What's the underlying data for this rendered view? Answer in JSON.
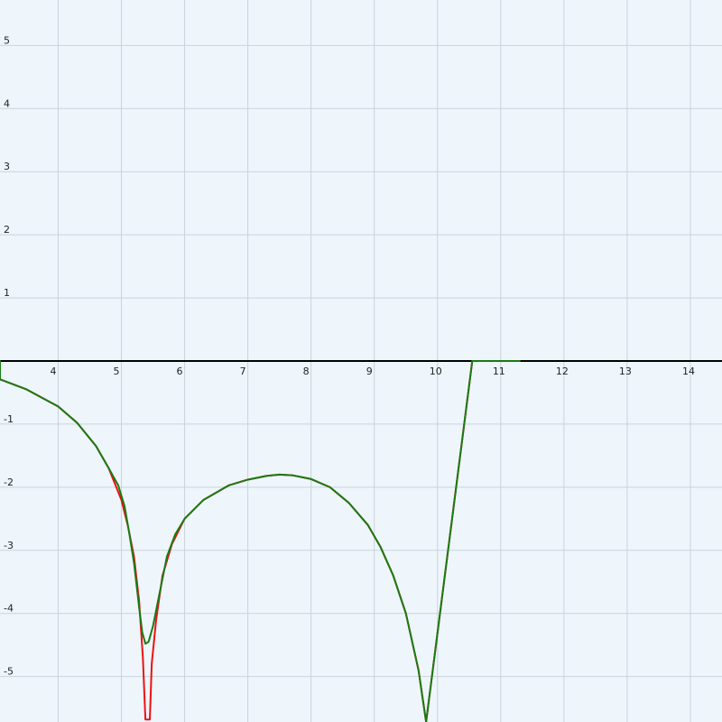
{
  "chart_data": {
    "type": "line",
    "title": "",
    "xlabel": "",
    "ylabel": "",
    "xlim": [
      3.08,
      14.5
    ],
    "ylim": [
      -5.72,
      5.72
    ],
    "grid": true,
    "legend": "none",
    "x_ticks": [
      4,
      5,
      6,
      7,
      8,
      9,
      10,
      11,
      12,
      13,
      14
    ],
    "x_tick_labels": [
      "4",
      "5",
      "6",
      "7",
      "8",
      "9",
      "10",
      "11",
      "12",
      "13",
      "14"
    ],
    "y_ticks": [
      5,
      4,
      3,
      2,
      1,
      -1,
      -2,
      -3,
      -4,
      -5
    ],
    "y_tick_labels": [
      "5",
      "4",
      "3",
      "2",
      "1",
      "-1",
      "-2",
      "-3",
      "-4",
      "-5"
    ],
    "colors": {
      "background": "#eef6fc",
      "grid": "#c9d3dc",
      "axis": "#000000",
      "series_red": "#ee1111",
      "series_green": "#1a7a12"
    },
    "series": [
      {
        "color": "#ee1111",
        "points": [
          [
            3.08,
            -0.29
          ],
          [
            3.5,
            -0.45
          ],
          [
            4.0,
            -0.72
          ],
          [
            4.3,
            -0.98
          ],
          [
            4.6,
            -1.35
          ],
          [
            4.8,
            -1.7
          ],
          [
            5.0,
            -2.2
          ],
          [
            5.1,
            -2.6
          ],
          [
            5.2,
            -3.1
          ],
          [
            5.28,
            -3.8
          ],
          [
            5.34,
            -4.7
          ],
          [
            5.38,
            -5.68
          ],
          [
            5.45,
            -5.68
          ],
          [
            5.48,
            -4.8
          ],
          [
            5.55,
            -4.1
          ],
          [
            5.65,
            -3.4
          ],
          [
            5.8,
            -2.9
          ],
          [
            6.0,
            -2.5
          ],
          [
            6.3,
            -2.2
          ],
          [
            6.7,
            -1.97
          ],
          [
            7.0,
            -1.88
          ],
          [
            7.3,
            -1.82
          ],
          [
            7.5,
            -1.8
          ],
          [
            7.7,
            -1.81
          ],
          [
            8.0,
            -1.87
          ],
          [
            8.3,
            -2.0
          ],
          [
            8.6,
            -2.25
          ],
          [
            8.9,
            -2.6
          ],
          [
            9.1,
            -2.95
          ],
          [
            9.3,
            -3.4
          ],
          [
            9.5,
            -4.0
          ],
          [
            9.7,
            -4.9
          ],
          [
            9.82,
            -5.72
          ],
          [
            10.55,
            0.0
          ],
          [
            11.3,
            0.0
          ]
        ]
      },
      {
        "color": "#1a7a12",
        "points": [
          [
            3.08,
            0.0
          ],
          [
            3.08,
            -0.29
          ],
          [
            3.5,
            -0.45
          ],
          [
            4.0,
            -0.72
          ],
          [
            4.3,
            -0.98
          ],
          [
            4.6,
            -1.35
          ],
          [
            4.8,
            -1.7
          ],
          [
            4.95,
            -1.97
          ],
          [
            5.05,
            -2.3
          ],
          [
            5.12,
            -2.7
          ],
          [
            5.2,
            -3.2
          ],
          [
            5.28,
            -3.9
          ],
          [
            5.33,
            -4.3
          ],
          [
            5.38,
            -4.48
          ],
          [
            5.43,
            -4.45
          ],
          [
            5.5,
            -4.2
          ],
          [
            5.6,
            -3.7
          ],
          [
            5.72,
            -3.1
          ],
          [
            5.85,
            -2.75
          ],
          [
            6.0,
            -2.5
          ],
          [
            6.3,
            -2.2
          ],
          [
            6.7,
            -1.97
          ],
          [
            7.0,
            -1.88
          ],
          [
            7.3,
            -1.82
          ],
          [
            7.5,
            -1.8
          ],
          [
            7.7,
            -1.81
          ],
          [
            8.0,
            -1.87
          ],
          [
            8.3,
            -2.0
          ],
          [
            8.6,
            -2.25
          ],
          [
            8.9,
            -2.6
          ],
          [
            9.1,
            -2.95
          ],
          [
            9.3,
            -3.4
          ],
          [
            9.5,
            -4.0
          ],
          [
            9.7,
            -4.9
          ],
          [
            9.82,
            -5.72
          ],
          [
            10.55,
            0.0
          ],
          [
            11.3,
            0.0
          ]
        ]
      }
    ]
  }
}
